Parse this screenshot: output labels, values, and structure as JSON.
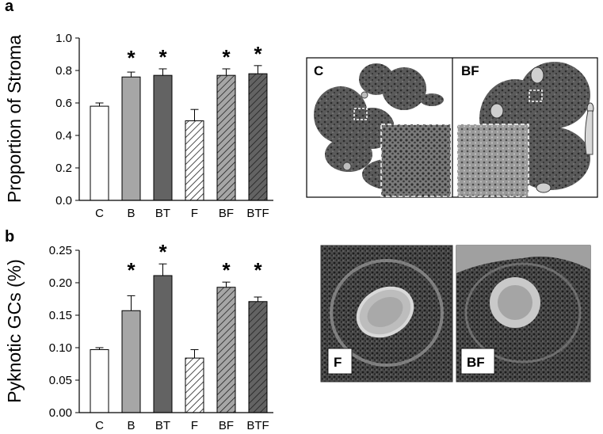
{
  "chart_data": [
    {
      "panel": "a",
      "type": "bar",
      "ylabel": "Proportion of Stroma",
      "categories": [
        "C",
        "B",
        "BT",
        "F",
        "BF",
        "BTF"
      ],
      "values": [
        0.58,
        0.76,
        0.77,
        0.49,
        0.77,
        0.78
      ],
      "errors": [
        0.02,
        0.03,
        0.04,
        0.07,
        0.04,
        0.05
      ],
      "significant": [
        false,
        true,
        true,
        false,
        true,
        true
      ],
      "ylim": [
        0.0,
        1.0
      ],
      "yticks": [
        "0.0",
        "0.2",
        "0.4",
        "0.6",
        "0.8",
        "1.0"
      ],
      "ytick_values": [
        0.0,
        0.2,
        0.4,
        0.6,
        0.8,
        1.0
      ],
      "star": "*",
      "bar_styles": [
        {
          "fill": "#ffffff",
          "hatch": false
        },
        {
          "fill": "#a6a6a6",
          "hatch": false
        },
        {
          "fill": "#636363",
          "hatch": false
        },
        {
          "fill": "#ffffff",
          "hatch": true
        },
        {
          "fill": "#a6a6a6",
          "hatch": true
        },
        {
          "fill": "#636363",
          "hatch": true
        }
      ]
    },
    {
      "panel": "b",
      "type": "bar",
      "ylabel": "Pyknotic GCs (%)",
      "categories": [
        "C",
        "B",
        "BT",
        "F",
        "BF",
        "BTF"
      ],
      "values": [
        0.097,
        0.157,
        0.211,
        0.084,
        0.193,
        0.171
      ],
      "errors": [
        0.003,
        0.023,
        0.018,
        0.013,
        0.008,
        0.007
      ],
      "significant": [
        false,
        true,
        true,
        false,
        true,
        true
      ],
      "ylim": [
        0.0,
        0.25
      ],
      "yticks": [
        "0.00",
        "0.05",
        "0.10",
        "0.15",
        "0.20",
        "0.25"
      ],
      "ytick_values": [
        0.0,
        0.05,
        0.1,
        0.15,
        0.2,
        0.25
      ],
      "star": "*",
      "bar_styles": [
        {
          "fill": "#ffffff",
          "hatch": false
        },
        {
          "fill": "#a6a6a6",
          "hatch": false
        },
        {
          "fill": "#636363",
          "hatch": false
        },
        {
          "fill": "#ffffff",
          "hatch": true
        },
        {
          "fill": "#a6a6a6",
          "hatch": true
        },
        {
          "fill": "#636363",
          "hatch": true
        }
      ]
    }
  ],
  "images": {
    "top_left_label": "C",
    "top_right_label": "BF",
    "bottom_left_label": "F",
    "bottom_right_label": "BF"
  }
}
